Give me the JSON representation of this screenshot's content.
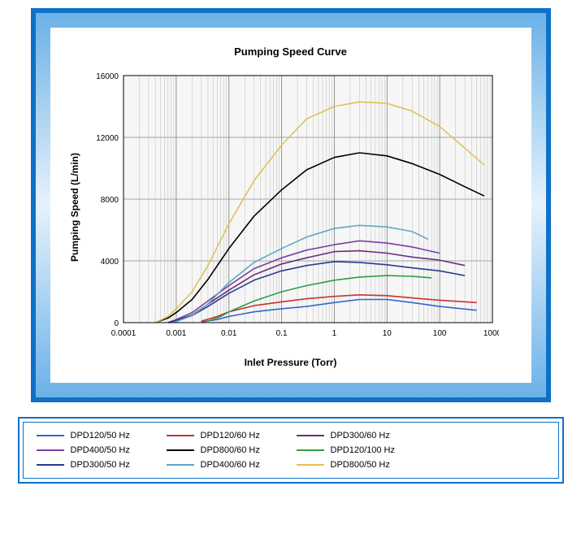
{
  "chart": {
    "title": "Pumping Speed Curve",
    "xlabel": "Inlet Pressure (Torr)",
    "ylabel": "Pumping Speed (L/min)",
    "x_axis": {
      "type": "log",
      "min": 0.0001,
      "max": 1000,
      "tick_labels": [
        "0.0001",
        "0.001",
        "0.01",
        "0.1",
        "1",
        "10",
        "100",
        "1000"
      ],
      "tick_exponents": [
        -4,
        -3,
        -2,
        -1,
        0,
        1,
        2,
        3
      ]
    },
    "y_axis": {
      "type": "linear",
      "min": 0,
      "max": 16000,
      "tick_step": 4000,
      "tick_labels": [
        "0",
        "4000",
        "8000",
        "12000",
        "16000"
      ]
    },
    "plot_bg": "#f6f6f6",
    "grid_color": "#888888",
    "minor_grid_color": "#bcbcbc",
    "axis_color": "#000000",
    "series": [
      {
        "name": "DPD120/50 Hz",
        "color": "#3366cc",
        "pts": [
          [
            0.003,
            50
          ],
          [
            0.006,
            200
          ],
          [
            0.01,
            400
          ],
          [
            0.03,
            700
          ],
          [
            0.1,
            900
          ],
          [
            0.3,
            1050
          ],
          [
            1,
            1300
          ],
          [
            3,
            1500
          ],
          [
            10,
            1500
          ],
          [
            30,
            1300
          ],
          [
            100,
            1050
          ],
          [
            500,
            800
          ]
        ]
      },
      {
        "name": "DPD120/60 Hz",
        "color": "#c83232",
        "pts": [
          [
            0.003,
            100
          ],
          [
            0.006,
            400
          ],
          [
            0.01,
            700
          ],
          [
            0.03,
            1100
          ],
          [
            0.1,
            1350
          ],
          [
            0.3,
            1550
          ],
          [
            1,
            1700
          ],
          [
            3,
            1800
          ],
          [
            10,
            1750
          ],
          [
            30,
            1600
          ],
          [
            100,
            1450
          ],
          [
            500,
            1300
          ]
        ]
      },
      {
        "name": "DPD300/60 Hz",
        "color": "#6b2f7a",
        "pts": [
          [
            0.0007,
            0
          ],
          [
            0.001,
            150
          ],
          [
            0.002,
            500
          ],
          [
            0.004,
            1200
          ],
          [
            0.01,
            2100
          ],
          [
            0.03,
            3100
          ],
          [
            0.1,
            3800
          ],
          [
            0.3,
            4200
          ],
          [
            1,
            4600
          ],
          [
            3,
            4650
          ],
          [
            10,
            4500
          ],
          [
            30,
            4250
          ],
          [
            100,
            4050
          ],
          [
            300,
            3700
          ]
        ]
      },
      {
        "name": "DPD400/50 Hz",
        "color": "#7a3fa0",
        "pts": [
          [
            0.0007,
            0
          ],
          [
            0.001,
            200
          ],
          [
            0.002,
            650
          ],
          [
            0.004,
            1400
          ],
          [
            0.01,
            2400
          ],
          [
            0.03,
            3500
          ],
          [
            0.1,
            4200
          ],
          [
            0.3,
            4700
          ],
          [
            1,
            5050
          ],
          [
            3,
            5300
          ],
          [
            10,
            5150
          ],
          [
            30,
            4900
          ],
          [
            100,
            4500
          ]
        ]
      },
      {
        "name": "DPD800/60 Hz",
        "color": "#000000",
        "pts": [
          [
            0.0004,
            0
          ],
          [
            0.0007,
            300
          ],
          [
            0.001,
            650
          ],
          [
            0.002,
            1500
          ],
          [
            0.004,
            2800
          ],
          [
            0.01,
            4800
          ],
          [
            0.03,
            6900
          ],
          [
            0.1,
            8600
          ],
          [
            0.3,
            9900
          ],
          [
            1,
            10700
          ],
          [
            3,
            11000
          ],
          [
            10,
            10800
          ],
          [
            30,
            10300
          ],
          [
            100,
            9600
          ],
          [
            300,
            8800
          ],
          [
            700,
            8200
          ]
        ]
      },
      {
        "name": "DPD120/100 Hz",
        "color": "#2e9e45",
        "pts": [
          [
            0.004,
            100
          ],
          [
            0.007,
            400
          ],
          [
            0.01,
            700
          ],
          [
            0.03,
            1400
          ],
          [
            0.1,
            2000
          ],
          [
            0.3,
            2400
          ],
          [
            1,
            2750
          ],
          [
            3,
            2950
          ],
          [
            10,
            3050
          ],
          [
            30,
            3000
          ],
          [
            70,
            2900
          ]
        ]
      },
      {
        "name": "DPD300/50 Hz",
        "color": "#2b3a8f",
        "pts": [
          [
            0.0007,
            0
          ],
          [
            0.001,
            150
          ],
          [
            0.002,
            450
          ],
          [
            0.004,
            1050
          ],
          [
            0.01,
            1900
          ],
          [
            0.03,
            2750
          ],
          [
            0.1,
            3350
          ],
          [
            0.3,
            3700
          ],
          [
            1,
            3950
          ],
          [
            3,
            3900
          ],
          [
            10,
            3750
          ],
          [
            30,
            3550
          ],
          [
            100,
            3350
          ],
          [
            300,
            3050
          ]
        ]
      },
      {
        "name": "DPD400/60 Hz",
        "color": "#5fa8c9",
        "pts": [
          [
            0.0009,
            0
          ],
          [
            0.002,
            450
          ],
          [
            0.004,
            1200
          ],
          [
            0.01,
            2600
          ],
          [
            0.03,
            3900
          ],
          [
            0.1,
            4800
          ],
          [
            0.3,
            5550
          ],
          [
            1,
            6100
          ],
          [
            3,
            6300
          ],
          [
            10,
            6200
          ],
          [
            30,
            5900
          ],
          [
            60,
            5400
          ]
        ]
      },
      {
        "name": "DPD800/50 Hz",
        "color": "#e0c257",
        "pts": [
          [
            0.0004,
            0
          ],
          [
            0.0007,
            400
          ],
          [
            0.001,
            900
          ],
          [
            0.002,
            2000
          ],
          [
            0.004,
            3700
          ],
          [
            0.01,
            6400
          ],
          [
            0.03,
            9200
          ],
          [
            0.1,
            11500
          ],
          [
            0.3,
            13200
          ],
          [
            1,
            14000
          ],
          [
            3,
            14300
          ],
          [
            10,
            14200
          ],
          [
            30,
            13700
          ],
          [
            100,
            12700
          ],
          [
            300,
            11300
          ],
          [
            700,
            10200
          ]
        ]
      }
    ],
    "legend_order": [
      "DPD120/50 Hz",
      "DPD120/60 Hz",
      "DPD300/60 Hz",
      "DPD400/50 Hz",
      "DPD800/60 Hz",
      "DPD120/100 Hz",
      "DPD300/50 Hz",
      "DPD400/60 Hz",
      "DPD800/50 Hz"
    ],
    "title_fontsize": 13,
    "label_fontsize": 12,
    "tick_fontsize": 10,
    "line_width": 1.6
  }
}
